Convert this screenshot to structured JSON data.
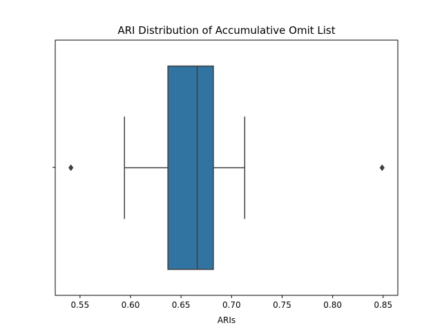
{
  "chart_data": {
    "type": "box",
    "orientation": "horizontal",
    "title": "ARI Distribution of Accumulative Omit List",
    "xlabel": "ARIs",
    "ylabel": "",
    "xlim": [
      0.5255,
      0.8645
    ],
    "xticks": [
      0.55,
      0.6,
      0.65,
      0.7,
      0.75,
      0.8,
      0.85
    ],
    "xtick_labels": [
      "0.55",
      "0.60",
      "0.65",
      "0.70",
      "0.75",
      "0.80",
      "0.85"
    ],
    "grid": false,
    "box": {
      "whisker_low": 0.594,
      "q1": 0.637,
      "median": 0.666,
      "q3": 0.682,
      "whisker_high": 0.713,
      "outliers": [
        0.541,
        0.849
      ]
    },
    "colors": {
      "box_fill": "#3274a1",
      "line": "#3f3f3f"
    }
  }
}
